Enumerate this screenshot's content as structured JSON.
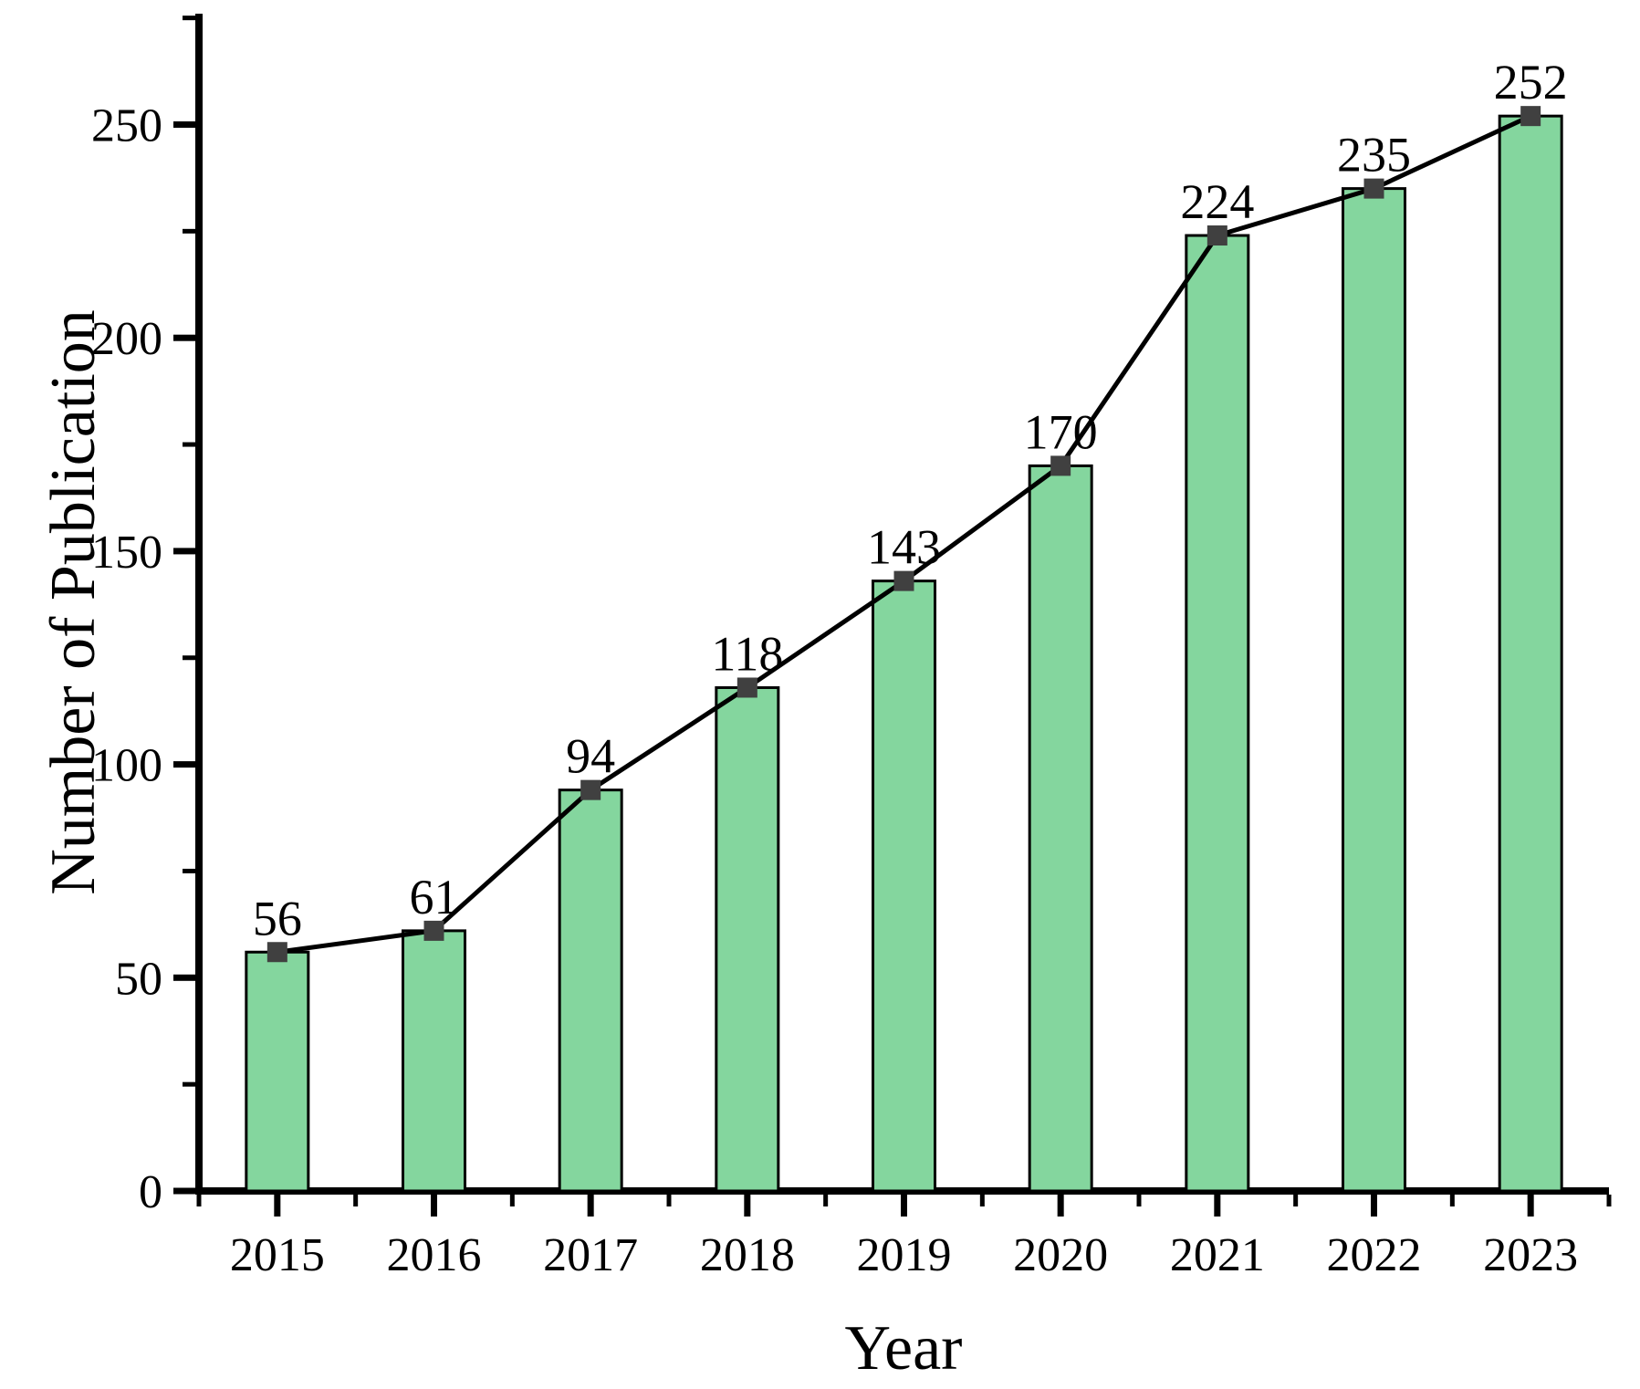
{
  "chart_data": {
    "type": "bar",
    "overlay": "line-with-square-markers",
    "categories": [
      "2015",
      "2016",
      "2017",
      "2018",
      "2019",
      "2020",
      "2021",
      "2022",
      "2023"
    ],
    "values": [
      56,
      61,
      94,
      118,
      143,
      170,
      224,
      235,
      252
    ],
    "series": [
      {
        "name": "Number of Publication (bars)",
        "values": [
          56,
          61,
          94,
          118,
          143,
          170,
          224,
          235,
          252
        ]
      },
      {
        "name": "Number of Publication (line)",
        "values": [
          56,
          61,
          94,
          118,
          143,
          170,
          224,
          235,
          252
        ]
      }
    ],
    "title": "",
    "xlabel": "Year",
    "ylabel": "Number of Publication",
    "ylim": [
      0,
      276
    ],
    "y_major_ticks": [
      0,
      50,
      100,
      150,
      200,
      250
    ],
    "y_minor_ticks": [
      25,
      75,
      125,
      175,
      225,
      275
    ],
    "x_minor_ticks_at_category_boundaries": true,
    "grid": "off",
    "legend": "none",
    "data_labels_shown": true,
    "colors": {
      "bar_fill": "#84D69E",
      "bar_edge": "#000000",
      "line": "#000000",
      "marker": "#404040",
      "axis": "#000000",
      "text": "#000000",
      "background": "#FFFFFF"
    }
  }
}
